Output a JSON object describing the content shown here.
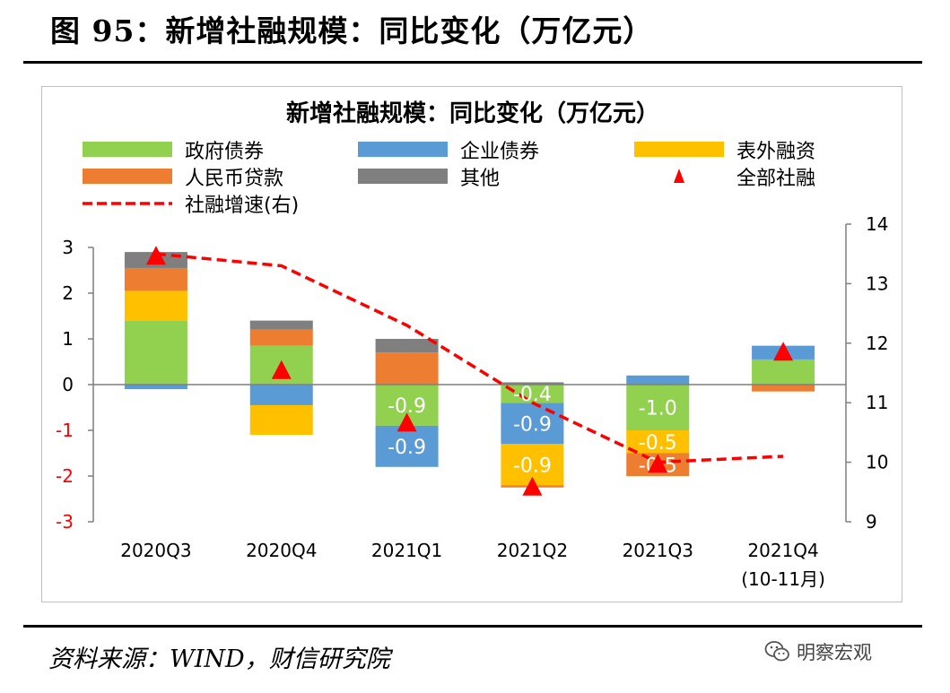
{
  "figure": {
    "heading": "图 95：新增社融规模：同比变化（万亿元）",
    "source": "资料来源：WIND，财信研究院",
    "watermark": "明察宏观"
  },
  "colors": {
    "gov_bonds": "#92d050",
    "corp_bonds": "#5b9bd5",
    "off_balance": "#ffc000",
    "rmb_loans": "#ed7d31",
    "other": "#7f7f7f",
    "total": "#ff0000",
    "growth": "#ff0000",
    "label_in_bar": "#ffffff"
  },
  "chart_data": {
    "type": "bar",
    "subtype": "stacked bar + line (secondary axis) + markers",
    "title": "新增社融规模：同比变化（万亿元）",
    "categories": [
      "2020Q3",
      "2020Q4",
      "2021Q1",
      "2021Q2",
      "2021Q3",
      "2021Q4\n(10-11月)"
    ],
    "series": [
      {
        "name": "政府债券",
        "key": "gov_bonds",
        "values": [
          1.4,
          0.85,
          -0.9,
          -0.4,
          -1.0,
          0.55
        ]
      },
      {
        "name": "企业债券",
        "key": "corp_bonds",
        "values": [
          -0.1,
          -0.45,
          -0.9,
          -0.9,
          0.2,
          0.3
        ]
      },
      {
        "name": "表外融资",
        "key": "off_balance",
        "values": [
          0.65,
          -0.65,
          0.0,
          -0.9,
          -0.5,
          0.0
        ]
      },
      {
        "name": "人民币贷款",
        "key": "rmb_loans",
        "values": [
          0.5,
          0.35,
          0.7,
          -0.05,
          -0.5,
          -0.15
        ]
      },
      {
        "name": "其他",
        "key": "other",
        "values": [
          0.35,
          0.2,
          0.3,
          0.05,
          0.0,
          0.0
        ]
      }
    ],
    "markers": {
      "name": "全部社融",
      "values": [
        2.8,
        0.3,
        -0.85,
        -2.25,
        -1.75,
        0.7
      ]
    },
    "line": {
      "name": "社融增速(右)",
      "axis": "right",
      "values": [
        13.5,
        13.3,
        12.3,
        11.0,
        10.0,
        10.1
      ]
    },
    "data_labels": [
      {
        "category": 2,
        "series": "gov_bonds",
        "text": "-0.9"
      },
      {
        "category": 2,
        "series": "corp_bonds",
        "text": "-0.9"
      },
      {
        "category": 3,
        "series": "gov_bonds",
        "text": "-0.4"
      },
      {
        "category": 3,
        "series": "corp_bonds",
        "text": "-0.9"
      },
      {
        "category": 3,
        "series": "off_balance",
        "text": "-0.9"
      },
      {
        "category": 4,
        "series": "gov_bonds",
        "text": "-1.0"
      },
      {
        "category": 4,
        "series": "off_balance",
        "text": "-0.5"
      },
      {
        "category": 4,
        "series": "rmb_loans",
        "text": "-0.5"
      }
    ],
    "yleft": {
      "min": -3,
      "max": 3,
      "ticks": [
        3,
        2,
        1,
        0,
        -1,
        -2,
        -3
      ]
    },
    "yright": {
      "min": 9,
      "max": 14,
      "ticks": [
        14,
        13,
        12,
        11,
        10,
        9
      ]
    },
    "legend": {
      "placement": "top",
      "items": [
        {
          "label": "政府债券",
          "kind": "box",
          "key": "gov_bonds"
        },
        {
          "label": "企业债券",
          "kind": "box",
          "key": "corp_bonds"
        },
        {
          "label": "表外融资",
          "kind": "box",
          "key": "off_balance"
        },
        {
          "label": "人民币贷款",
          "kind": "box",
          "key": "rmb_loans"
        },
        {
          "label": "其他",
          "kind": "box",
          "key": "other"
        },
        {
          "label": "全部社融",
          "kind": "triangle",
          "key": "total"
        },
        {
          "label": "社融增速(右)",
          "kind": "dash",
          "key": "growth"
        }
      ]
    },
    "grid": false
  }
}
